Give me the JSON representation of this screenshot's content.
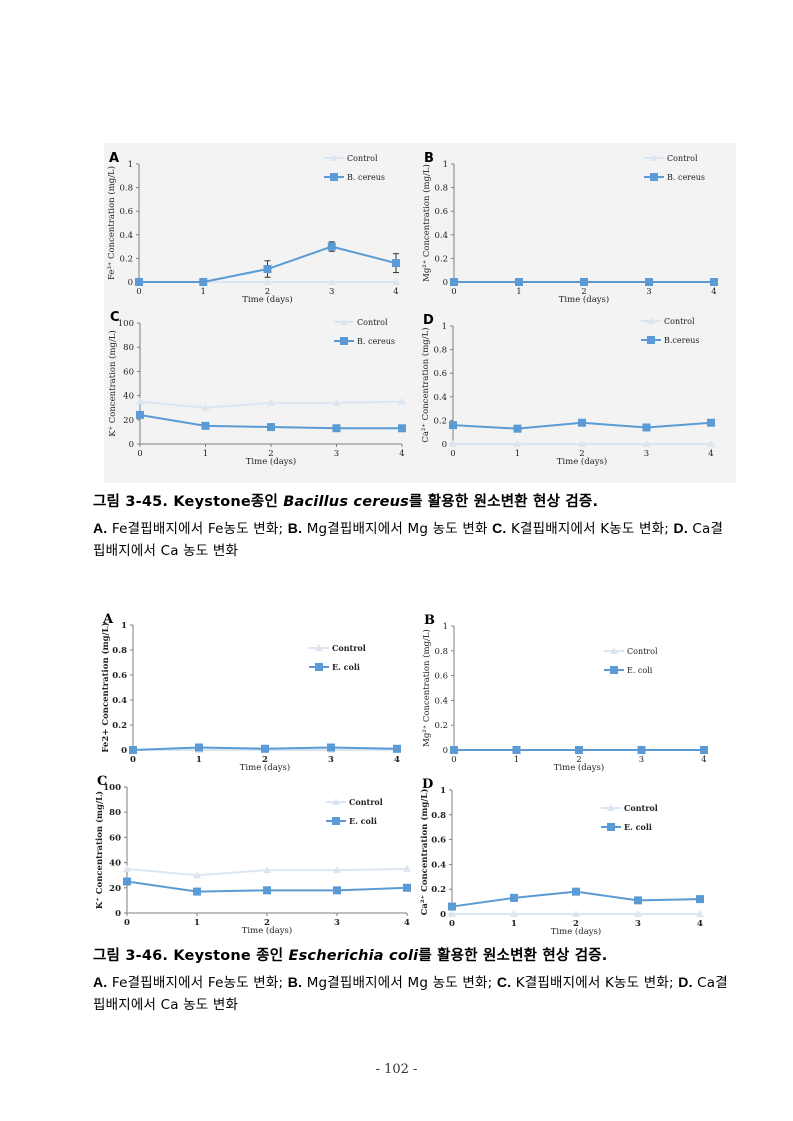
{
  "figure1": {
    "title_prefix": "그림 3-45. Keystone종인 ",
    "title_species": "Bacillus cereus",
    "title_suffix": "를 활용한 원소변환 현상 검증.",
    "body": [
      {
        "letter": "A.",
        "text": " Fe결핍배지에서 Fe농도 변화; "
      },
      {
        "letter": "B.",
        "text": " Mg결핍배지에서 Mg 농도 변화 "
      },
      {
        "letter": "C.",
        "text": " K결핍배지에서 K농도 변화; "
      },
      {
        "letter": "D.",
        "text": " Ca결핍배지에서 Ca 농도 변화"
      }
    ]
  },
  "figure2": {
    "title_prefix": "그림 3-46. Keystone 종인 ",
    "title_species": "Escherichia coli",
    "title_suffix": "를 활용한 원소변환 현상 검증.",
    "body": [
      {
        "letter": "A.",
        "text": " Fe결핍배지에서 Fe농도 변화; "
      },
      {
        "letter": "B.",
        "text": " Mg결핍배지에서 Mg 농도 변화; "
      },
      {
        "letter": "C.",
        "text": " K결핍배지에서 K농도 변화; "
      },
      {
        "letter": "D.",
        "text": " Ca결핍배지에서 Ca 농도 변화"
      }
    ]
  },
  "page_number": "- 102 -",
  "colors": {
    "treatment": "#5b9bd5",
    "control": "#dce6f2",
    "axis": "#7f7f7f"
  },
  "chart_data": [
    {
      "id": "f1a",
      "panel_label": "A",
      "type": "line",
      "xlabel": "Time (days)",
      "ylabel": "Fe³⁺ Concentration (mg/L)",
      "x": [
        0,
        1,
        2,
        3,
        4
      ],
      "ylim": [
        0,
        1
      ],
      "yticks": [
        0,
        0.2,
        0.4,
        0.6,
        0.8,
        1
      ],
      "ytick_labels": [
        "0",
        "0.2",
        "0.4",
        "0.6",
        "0.8",
        "1"
      ],
      "series": [
        {
          "name": "Control",
          "values": [
            0,
            0,
            0,
            0,
            0
          ]
        },
        {
          "name": "B. cereus",
          "values": [
            0,
            0,
            0.11,
            0.3,
            0.16
          ],
          "errors": [
            0,
            0,
            0.07,
            0.04,
            0.08
          ]
        }
      ]
    },
    {
      "id": "f1b",
      "panel_label": "B",
      "type": "line",
      "xlabel": "Time (days)",
      "ylabel": "Mg²⁺ Concentration (mg/L)",
      "x": [
        0,
        1,
        2,
        3,
        4
      ],
      "ylim": [
        0,
        1
      ],
      "yticks": [
        0,
        0.2,
        0.4,
        0.6,
        0.8,
        1
      ],
      "ytick_labels": [
        "0",
        "0.2",
        "0.4",
        "0.6",
        "0.8",
        "1"
      ],
      "series": [
        {
          "name": "Control",
          "values": [
            0,
            0,
            0,
            0,
            0
          ]
        },
        {
          "name": "B. cereus",
          "values": [
            0,
            0,
            0,
            0,
            0
          ]
        }
      ]
    },
    {
      "id": "f1c",
      "panel_label": "C",
      "type": "line",
      "xlabel": "Time (days)",
      "ylabel": "K⁺ Concentration (mg/L)",
      "x": [
        0,
        1,
        2,
        3,
        4
      ],
      "ylim": [
        0,
        100
      ],
      "yticks": [
        0,
        20,
        40,
        60,
        80,
        100
      ],
      "ytick_labels": [
        "0",
        "20",
        "40",
        "60",
        "80",
        "100"
      ],
      "series": [
        {
          "name": "Control",
          "values": [
            35,
            30,
            34,
            34,
            35
          ]
        },
        {
          "name": "B. cereus",
          "values": [
            24,
            15,
            14,
            13,
            13
          ]
        }
      ]
    },
    {
      "id": "f1d",
      "panel_label": "D",
      "type": "line",
      "xlabel": "Time (days)",
      "ylabel": "Ca²⁺ Concentration (mg/L)",
      "x": [
        0,
        1,
        2,
        3,
        4
      ],
      "ylim": [
        0,
        1
      ],
      "yticks": [
        0,
        0.2,
        0.4,
        0.6,
        0.8,
        1
      ],
      "ytick_labels": [
        "0",
        "0.2",
        "0.4",
        "0.6",
        "0.8",
        "1"
      ],
      "series": [
        {
          "name": "Control",
          "values": [
            0,
            0,
            0,
            0,
            0
          ]
        },
        {
          "name": "B.cereus",
          "values": [
            0.16,
            0.13,
            0.18,
            0.14,
            0.18
          ]
        }
      ]
    },
    {
      "id": "f2a",
      "panel_label": "A",
      "type": "line",
      "xlabel": "Time (days)",
      "ylabel": "Fe2+ Concentration (mg/L)",
      "x": [
        0,
        1,
        2,
        3,
        4
      ],
      "ylim": [
        0,
        1
      ],
      "yticks": [
        0,
        0.2,
        0.4,
        0.6,
        0.8,
        1
      ],
      "ytick_labels": [
        "0",
        "0.2",
        "0.4",
        "0.6",
        "0.8",
        "1"
      ],
      "series": [
        {
          "name": "Control",
          "values": [
            0,
            0,
            0,
            0,
            0
          ]
        },
        {
          "name": "E. coli",
          "values": [
            0,
            0.02,
            0.01,
            0.02,
            0.01
          ]
        }
      ]
    },
    {
      "id": "f2b",
      "panel_label": "B",
      "type": "line",
      "xlabel": "Time (days)",
      "ylabel": "Mg²⁺ Concentration (mg/L)",
      "x": [
        0,
        1,
        2,
        3,
        4
      ],
      "ylim": [
        0,
        1
      ],
      "yticks": [
        0,
        0.2,
        0.4,
        0.6,
        0.8,
        1
      ],
      "ytick_labels": [
        "0",
        "0.2",
        "0.4",
        "0.6",
        "0.8",
        "1"
      ],
      "series": [
        {
          "name": "Control",
          "values": [
            0,
            0,
            0,
            0,
            0
          ]
        },
        {
          "name": "E. coli",
          "values": [
            0,
            0,
            0,
            0,
            0
          ]
        }
      ]
    },
    {
      "id": "f2c",
      "panel_label": "C",
      "type": "line",
      "xlabel": "Time (days)",
      "ylabel": "K⁺ Concentration (mg/L)",
      "x": [
        0,
        1,
        2,
        3,
        4
      ],
      "ylim": [
        0,
        100
      ],
      "yticks": [
        0,
        20,
        40,
        60,
        80,
        100
      ],
      "ytick_labels": [
        "0",
        "20",
        "40",
        "60",
        "80",
        "100"
      ],
      "series": [
        {
          "name": "Control",
          "values": [
            35,
            30,
            34,
            34,
            35
          ]
        },
        {
          "name": "E. coli",
          "values": [
            25,
            17,
            18,
            18,
            20
          ]
        }
      ]
    },
    {
      "id": "f2d",
      "panel_label": "D",
      "type": "line",
      "xlabel": "Time (days)",
      "ylabel": "Ca²⁺ Concentration (mg/L)",
      "x": [
        0,
        1,
        2,
        3,
        4
      ],
      "ylim": [
        0,
        1
      ],
      "yticks": [
        0,
        0.2,
        0.4,
        0.6,
        0.8,
        1
      ],
      "ytick_labels": [
        "0",
        "0.2",
        "0.4",
        "0.6",
        "0.8",
        "1"
      ],
      "series": [
        {
          "name": "Control",
          "values": [
            0,
            0,
            0,
            0,
            0
          ]
        },
        {
          "name": "E. coli",
          "values": [
            0.06,
            0.13,
            0.18,
            0.11,
            0.12
          ]
        }
      ]
    }
  ]
}
